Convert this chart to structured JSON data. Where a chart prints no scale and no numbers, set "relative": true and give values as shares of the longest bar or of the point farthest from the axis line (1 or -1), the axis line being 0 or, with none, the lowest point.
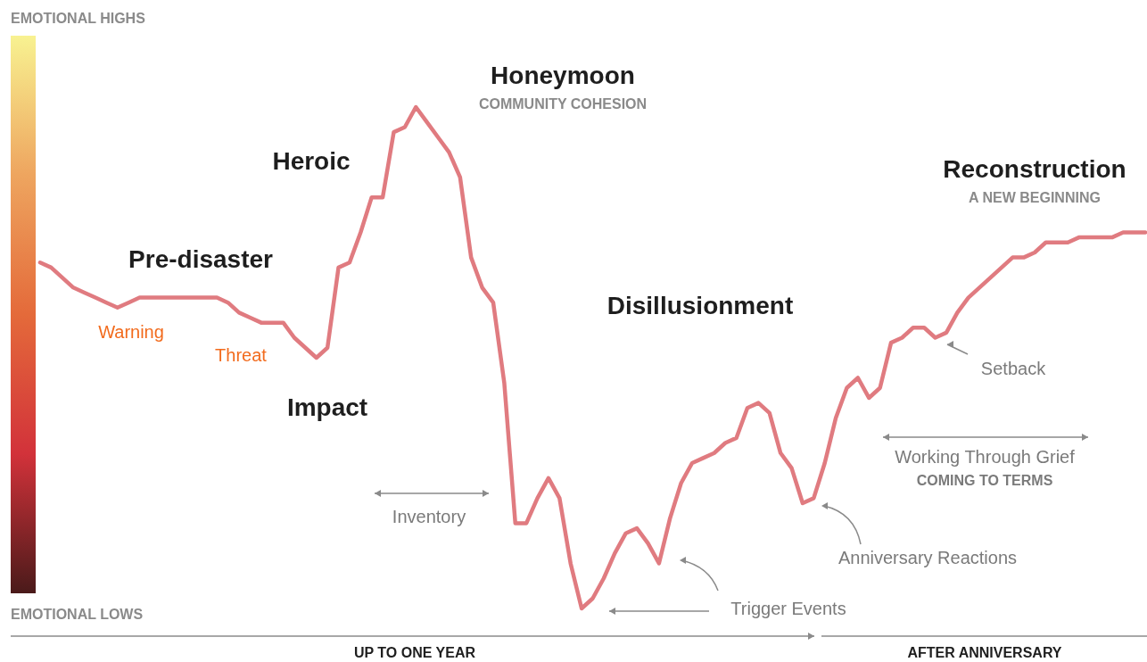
{
  "chart_data": {
    "type": "line",
    "relative": true,
    "categories": [
      null,
      null,
      null,
      null,
      null,
      null,
      null,
      null,
      null,
      null,
      null,
      null,
      null,
      null,
      null,
      null,
      null,
      null,
      null,
      null,
      null,
      null,
      null,
      null,
      null,
      null,
      null,
      null,
      null,
      null,
      null,
      null,
      null,
      null,
      null,
      null,
      null,
      null,
      null,
      null,
      null,
      null,
      null,
      null,
      null,
      null,
      null,
      null,
      null,
      null,
      null,
      null,
      null,
      null,
      null,
      null,
      null,
      null,
      null,
      null,
      null,
      null,
      null,
      null,
      null,
      null,
      null,
      null,
      null,
      null,
      null,
      null,
      null,
      null,
      null,
      null,
      null,
      null,
      null,
      null,
      null,
      null,
      null,
      null,
      null,
      null,
      null,
      null,
      null,
      null,
      null,
      null,
      null,
      null,
      null,
      null,
      null,
      null,
      null,
      null,
      null
    ],
    "series": [
      {
        "color": "#e07b80",
        "values": [
          0.69,
          0.68,
          0.66,
          0.64,
          0.63,
          0.62,
          0.61,
          0.6,
          0.61,
          0.62,
          0.62,
          0.62,
          0.62,
          0.62,
          0.62,
          0.62,
          0.62,
          0.61,
          0.59,
          0.58,
          0.57,
          0.57,
          0.57,
          0.54,
          0.52,
          0.5,
          0.52,
          0.68,
          0.69,
          0.75,
          0.82,
          0.82,
          0.95,
          0.96,
          1,
          0.97,
          0.94,
          0.91,
          0.86,
          0.7,
          0.64,
          0.61,
          0.45,
          0.17,
          0.17,
          0.22,
          0.26,
          0.22,
          0.09,
          0,
          0.02,
          0.06,
          0.11,
          0.15,
          0.16,
          0.13,
          0.09,
          0.18,
          0.25,
          0.29,
          0.3,
          0.31,
          0.33,
          0.34,
          0.4,
          0.41,
          0.39,
          0.31,
          0.28,
          0.21,
          0.22,
          0.29,
          0.38,
          0.44,
          0.46,
          0.42,
          0.44,
          0.53,
          0.54,
          0.56,
          0.56,
          0.54,
          0.55,
          0.59,
          0.62,
          0.64,
          0.66,
          0.68,
          0.7,
          0.7,
          0.71,
          0.73,
          0.73,
          0.73,
          0.74,
          0.74,
          0.74,
          0.74,
          0.75,
          0.75,
          0.75
        ]
      }
    ],
    "annotations": [
      "EMOTIONAL HIGHS",
      "EMOTIONAL LOWS",
      "Pre-disaster",
      "Warning",
      "Threat",
      "Impact",
      "Heroic",
      "Honeymoon",
      "COMMUNITY COHESION",
      "Disillusionment",
      "Reconstruction",
      "A NEW BEGINNING",
      "Inventory",
      "Trigger Events",
      "Anniversary Reactions",
      "Setback",
      "Working Through Grief",
      "COMING TO TERMS",
      "UP TO ONE YEAR",
      "AFTER ANNIVERSARY"
    ]
  }
}
